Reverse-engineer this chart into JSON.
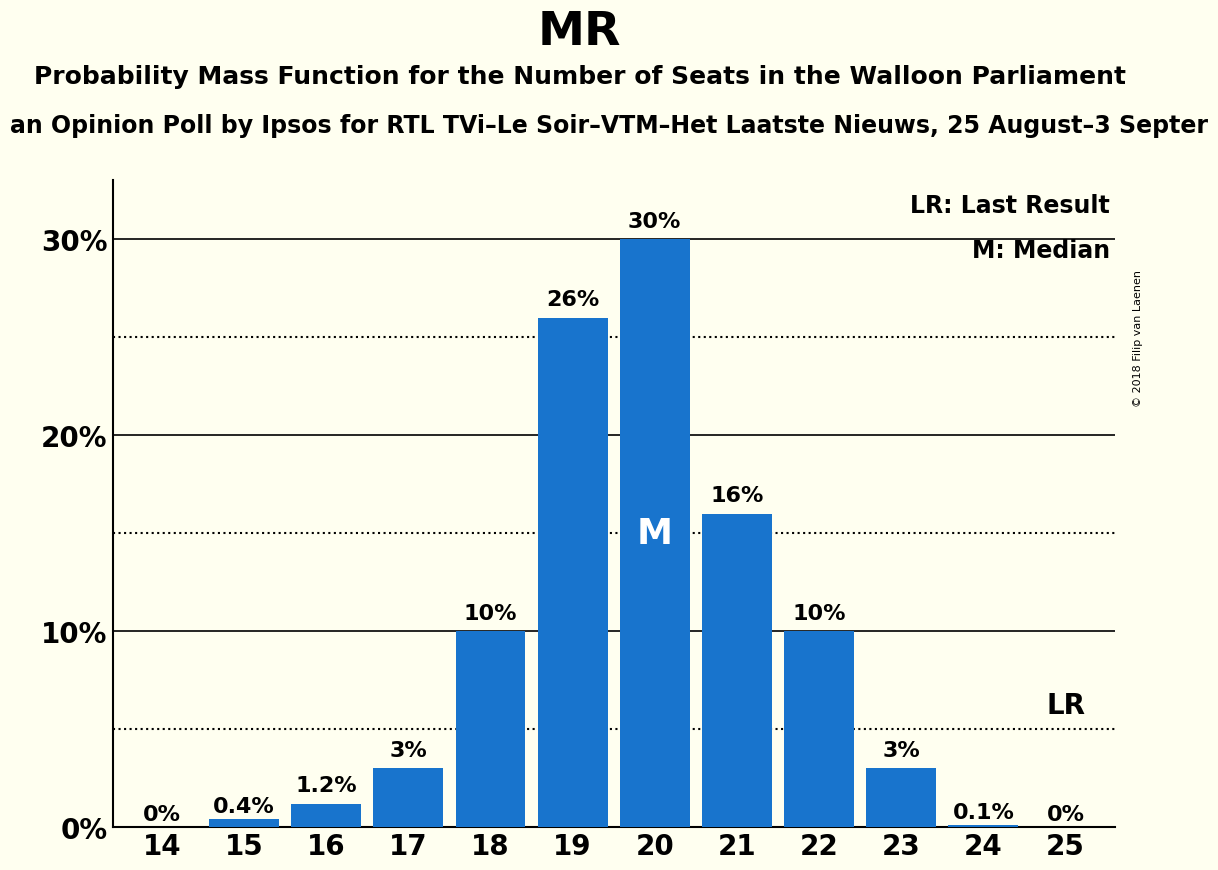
{
  "title": "MR",
  "subtitle1": "Probability Mass Function for the Number of Seats in the Walloon Parliament",
  "subtitle2": "an Opinion Poll by Ipsos for RTL TVi–Le Soir–VTM–Het Laatste Nieuws, 25 August–3 Septer",
  "watermark": "© 2018 Filip van Laenen",
  "categories": [
    14,
    15,
    16,
    17,
    18,
    19,
    20,
    21,
    22,
    23,
    24,
    25
  ],
  "values": [
    0.0,
    0.4,
    1.2,
    3.0,
    10.0,
    26.0,
    30.0,
    16.0,
    10.0,
    3.0,
    0.1,
    0.0
  ],
  "bar_labels": [
    "0%",
    "0.4%",
    "1.2%",
    "3%",
    "10%",
    "26%",
    "30%",
    "16%",
    "10%",
    "3%",
    "0.1%",
    "0%"
  ],
  "bar_color": "#1874CD",
  "background_color": "#FFFFF0",
  "median_seat": 20,
  "last_result_seat": 25,
  "ylim": [
    0,
    33
  ],
  "yticks": [
    0,
    10,
    20,
    30
  ],
  "ytick_labels": [
    "0%",
    "10%",
    "20%",
    "30%"
  ],
  "dotted_lines": [
    5,
    15,
    25
  ],
  "legend_lr": "LR: Last Result",
  "legend_m": "M: Median",
  "title_fontsize": 34,
  "subtitle1_fontsize": 18,
  "subtitle2_fontsize": 17,
  "axis_tick_fontsize": 20,
  "bar_label_fontsize": 16,
  "median_label_fontsize": 26,
  "lr_label_fontsize": 20,
  "legend_fontsize": 17,
  "watermark_fontsize": 8
}
